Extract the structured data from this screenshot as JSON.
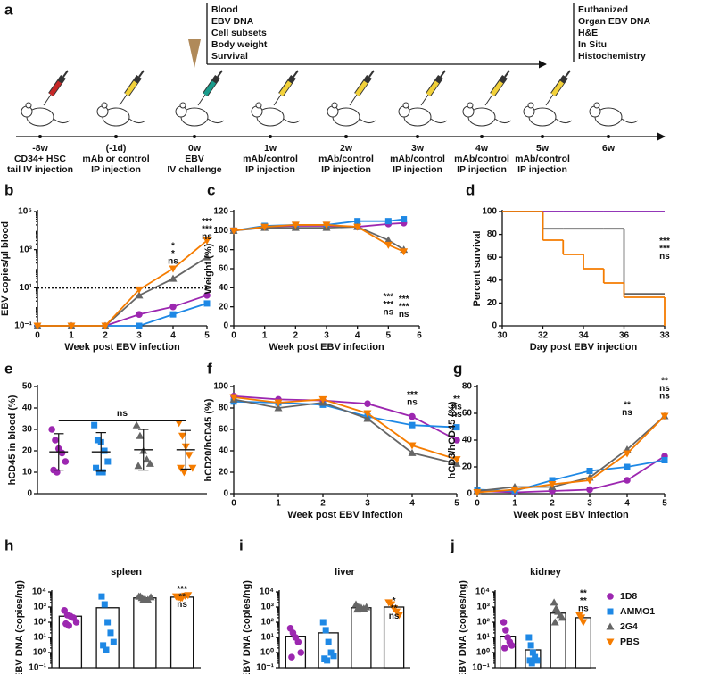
{
  "timeline": {
    "panel": "a",
    "measurements": [
      "Blood",
      "EBV DNA",
      "Cell subsets",
      "Body weight",
      "Survival"
    ],
    "endpoint": [
      "Euthanized",
      "Organ EBV DNA",
      "H&E",
      "In Situ",
      "Histochemistry"
    ],
    "points": [
      {
        "time": "-8w",
        "lines": [
          "CD34+ HSC",
          "tail IV injection"
        ]
      },
      {
        "time": "(-1d)",
        "lines": [
          "mAb or control",
          "IP injection"
        ]
      },
      {
        "time": "0w",
        "lines": [
          "EBV",
          "IV challenge"
        ]
      },
      {
        "time": "1w",
        "lines": [
          "mAb/control",
          "IP injection"
        ]
      },
      {
        "time": "2w",
        "lines": [
          "mAb/control",
          "IP injection"
        ]
      },
      {
        "time": "3w",
        "lines": [
          "mAb/control",
          "IP injection"
        ]
      },
      {
        "time": "4w",
        "lines": [
          "mAb/control",
          "IP injection"
        ]
      },
      {
        "time": "5w",
        "lines": [
          "mAb/control",
          "IP injection"
        ]
      },
      {
        "time": "6w",
        "lines": []
      }
    ]
  },
  "chart_data": [
    {
      "type": "line",
      "panel": "b",
      "xlabel": "Week post EBV infection",
      "ylabel": "EBV copies/µl blood",
      "ylog": true,
      "x": [
        0,
        1,
        2,
        3,
        4,
        5
      ],
      "xlim": [
        0,
        5
      ],
      "xticks": [
        0,
        1,
        2,
        3,
        4,
        5
      ],
      "ylim": [
        0.1,
        100000
      ],
      "yticks": [
        {
          "value": 0.1,
          "label": "10⁻¹"
        },
        {
          "value": 10,
          "label": "10¹"
        },
        {
          "value": 1000,
          "label": "10³"
        },
        {
          "value": 100000,
          "label": "10⁵"
        }
      ],
      "threshold": 10,
      "series": [
        {
          "color": "#9c27b0",
          "marker": "circle",
          "values": [
            0.1,
            0.1,
            0.1,
            0.4,
            1,
            4
          ]
        },
        {
          "color": "#1e88e5",
          "marker": "square",
          "values": [
            0.1,
            0.1,
            0.1,
            0.1,
            0.4,
            1.5
          ]
        },
        {
          "color": "#666666",
          "marker": "triangle",
          "values": [
            0.1,
            0.1,
            0.1,
            4,
            30,
            400
          ]
        },
        {
          "color": "#f57c00",
          "marker": "inverted-triangle",
          "values": [
            0.1,
            0.1,
            0.1,
            8,
            100,
            3000
          ]
        }
      ],
      "annotations": [
        {
          "x": 4,
          "y": 1500,
          "labels": [
            {
              "text": "*",
              "color": "#9c27b0"
            },
            {
              "text": "*",
              "color": "#1e88e5"
            },
            {
              "text": "ns",
              "color": "#666666"
            }
          ]
        },
        {
          "x": 5,
          "y": 30000,
          "labels": [
            {
              "text": "***",
              "color": "#9c27b0"
            },
            {
              "text": "***",
              "color": "#1e88e5"
            },
            {
              "text": "ns",
              "color": "#666666"
            }
          ]
        }
      ]
    },
    {
      "type": "line",
      "panel": "c",
      "xlabel": "Week post EBV infection",
      "ylabel": "Weight (%)",
      "x": [
        0,
        1,
        2,
        3,
        4,
        5,
        5.5
      ],
      "xlim": [
        0,
        6
      ],
      "xticks": [
        0,
        1,
        2,
        3,
        4,
        5,
        6
      ],
      "ylim": [
        0,
        120
      ],
      "yticks": [
        0,
        20,
        40,
        60,
        80,
        100,
        120
      ],
      "series": [
        {
          "color": "#9c27b0",
          "marker": "circle",
          "values": [
            100,
            104,
            105,
            105,
            104,
            107,
            108
          ]
        },
        {
          "color": "#1e88e5",
          "marker": "square",
          "values": [
            100,
            105,
            106,
            106,
            110,
            110,
            112
          ]
        },
        {
          "color": "#666666",
          "marker": "triangle",
          "values": [
            100,
            103,
            103,
            103,
            104,
            90,
            80
          ]
        },
        {
          "color": "#f57c00",
          "marker": "inverted-triangle",
          "values": [
            100,
            104,
            106,
            106,
            104,
            85,
            78
          ]
        }
      ],
      "annotations": [
        {
          "x": 5,
          "y": 30,
          "labels": [
            {
              "text": "***",
              "color": "#9c27b0"
            },
            {
              "text": "***",
              "color": "#1e88e5"
            },
            {
              "text": "ns",
              "color": "#666666"
            }
          ]
        },
        {
          "x": 5.5,
          "y": 28,
          "labels": [
            {
              "text": "***",
              "color": "#9c27b0"
            },
            {
              "text": "***",
              "color": "#1e88e5"
            },
            {
              "text": "ns",
              "color": "#666666"
            }
          ]
        }
      ]
    },
    {
      "type": "step",
      "panel": "d",
      "xlabel": "Day post EBV injection",
      "ylabel": "Percent survival",
      "x": [
        30,
        32,
        33,
        34,
        35,
        36,
        38
      ],
      "xlim": [
        30,
        38
      ],
      "xticks": [
        30,
        32,
        34,
        36,
        38
      ],
      "ylim": [
        0,
        100
      ],
      "yticks": [
        0,
        20,
        40,
        60,
        80,
        100
      ],
      "series": [
        {
          "color": "#1e88e5",
          "values": [
            100,
            100,
            100,
            100,
            100,
            100,
            100
          ]
        },
        {
          "color": "#9c27b0",
          "values": [
            100,
            100,
            100,
            100,
            100,
            100,
            100
          ]
        },
        {
          "color": "#666666",
          "values": [
            100,
            85,
            85,
            85,
            85,
            28,
            28
          ]
        },
        {
          "color": "#f57c00",
          "values": [
            100,
            75,
            62.5,
            50,
            37.5,
            25,
            0
          ]
        }
      ],
      "annotations": [
        {
          "x": 38,
          "y": 74,
          "labels": [
            {
              "text": "***",
              "color": "#9c27b0"
            },
            {
              "text": "***",
              "color": "#1e88e5"
            },
            {
              "text": "ns",
              "color": "#666666"
            }
          ]
        }
      ]
    },
    {
      "type": "dot",
      "panel": "e",
      "ylabel": "hCD45 in blood (%)",
      "ylim": [
        0,
        50
      ],
      "yticks": [
        0,
        10,
        20,
        30,
        40,
        50
      ],
      "bracket": {
        "text": "ns",
        "y": 34
      },
      "series": [
        {
          "color": "#9c27b0",
          "marker": "circle",
          "values": [
            30,
            25,
            21,
            19,
            15,
            11,
            10
          ],
          "mean": 19.5,
          "sd": 8.5
        },
        {
          "color": "#1e88e5",
          "marker": "square",
          "values": [
            32,
            25,
            24,
            20,
            15,
            12,
            10,
            10
          ],
          "mean": 19.5,
          "sd": 9
        },
        {
          "color": "#666666",
          "marker": "triangle",
          "values": [
            32,
            27,
            20,
            16,
            14,
            13
          ],
          "mean": 20.5,
          "sd": 9.5
        },
        {
          "color": "#f57c00",
          "marker": "inverted-triangle",
          "values": [
            33,
            27,
            22,
            18,
            12,
            12,
            10
          ],
          "mean": 20.5,
          "sd": 9
        }
      ]
    },
    {
      "type": "line",
      "panel": "f",
      "xlabel": "Week post EBV infection",
      "ylabel": "hCD20/hCD45 (%)",
      "x": [
        0,
        1,
        2,
        3,
        4,
        5
      ],
      "xlim": [
        0,
        5
      ],
      "xticks": [
        0,
        1,
        2,
        3,
        4,
        5
      ],
      "ylim": [
        0,
        100
      ],
      "yticks": [
        0,
        20,
        40,
        60,
        80,
        100
      ],
      "series": [
        {
          "color": "#9c27b0",
          "marker": "circle",
          "values": [
            91,
            88,
            87,
            84,
            72,
            50
          ]
        },
        {
          "color": "#1e88e5",
          "marker": "square",
          "values": [
            86,
            85,
            83,
            72,
            64,
            62
          ]
        },
        {
          "color": "#666666",
          "marker": "triangle",
          "values": [
            88,
            80,
            85,
            70,
            38,
            28
          ]
        },
        {
          "color": "#f57c00",
          "marker": "inverted-triangle",
          "values": [
            90,
            85,
            88,
            75,
            45,
            32
          ]
        }
      ],
      "annotations": [
        {
          "x": 4,
          "y": 92,
          "labels": [
            {
              "text": "***",
              "color": "#9c27b0"
            },
            {
              "text": "ns",
              "color": "#666666"
            }
          ]
        },
        {
          "x": 5,
          "y": 88,
          "labels": [
            {
              "text": "**",
              "color": "#1e88e5"
            },
            {
              "text": "ns",
              "color": "#9c27b0"
            },
            {
              "text": "ns",
              "color": "#666666"
            }
          ]
        }
      ]
    },
    {
      "type": "line",
      "panel": "g",
      "xlabel": "Week post EBV infection",
      "ylabel": "hCD3/hCD45 (%)",
      "x": [
        0,
        1,
        2,
        3,
        4,
        5
      ],
      "xlim": [
        0,
        5
      ],
      "xticks": [
        0,
        1,
        2,
        3,
        4,
        5
      ],
      "ylim": [
        0,
        80
      ],
      "yticks": [
        0,
        20,
        40,
        60,
        80
      ],
      "series": [
        {
          "color": "#9c27b0",
          "marker": "circle",
          "values": [
            2,
            1,
            2,
            3,
            10,
            28
          ]
        },
        {
          "color": "#1e88e5",
          "marker": "square",
          "values": [
            3,
            2,
            10,
            17,
            20,
            25
          ]
        },
        {
          "color": "#666666",
          "marker": "triangle",
          "values": [
            2,
            5,
            5,
            12,
            33,
            58
          ]
        },
        {
          "color": "#f57c00",
          "marker": "inverted-triangle",
          "values": [
            1,
            3,
            7,
            10,
            30,
            58
          ]
        }
      ],
      "annotations": [
        {
          "x": 4,
          "y": 66,
          "labels": [
            {
              "text": "**",
              "color": "#9c27b0"
            },
            {
              "text": "ns",
              "color": "#666666"
            }
          ]
        },
        {
          "x": 5,
          "y": 84,
          "labels": [
            {
              "text": "**",
              "color": "#1e88e5"
            },
            {
              "text": "ns",
              "color": "#9c27b0"
            },
            {
              "text": "ns",
              "color": "#666666"
            }
          ]
        }
      ]
    },
    {
      "type": "bar",
      "panel": "h",
      "title": "spleen",
      "ylabel": "EBV DNA (copies/ng)",
      "ylog": true,
      "ylim": [
        0.1,
        10000
      ],
      "yticks": [
        {
          "value": 0.1,
          "label": "10⁻¹"
        },
        {
          "value": 1,
          "label": "10⁰"
        },
        {
          "value": 10,
          "label": "10¹"
        },
        {
          "value": 100,
          "label": "10²"
        },
        {
          "value": 1000,
          "label": "10³"
        },
        {
          "value": 10000,
          "label": "10⁴"
        }
      ],
      "series": [
        {
          "color": "#9c27b0",
          "marker": "circle",
          "mean": 250,
          "values": [
            600,
            300,
            250,
            200,
            100,
            80,
            60
          ]
        },
        {
          "color": "#1e88e5",
          "marker": "square",
          "mean": 900,
          "values": [
            5000,
            1500,
            100,
            20,
            5,
            3,
            1.5
          ]
        },
        {
          "color": "#666666",
          "marker": "triangle",
          "mean": 4000,
          "values": [
            5000,
            4000,
            3500,
            3000,
            4500,
            5000,
            3000
          ]
        },
        {
          "color": "#f57c00",
          "marker": "inverted-triangle",
          "mean": 4500,
          "values": [
            5000,
            4500,
            4000,
            5500,
            6000,
            4500,
            4000
          ],
          "annotations": {
            "y": 14000,
            "labels": [
              {
                "text": "***",
                "color": "#9c27b0"
              },
              {
                "text": "**",
                "color": "#1e88e5"
              },
              {
                "text": "ns",
                "color": "#666666"
              }
            ]
          }
        }
      ]
    },
    {
      "type": "bar",
      "panel": "i",
      "title": "liver",
      "ylabel": "EBV DNA (copies/ng)",
      "ylog": true,
      "ylim": [
        0.1,
        10000
      ],
      "yticks": [
        {
          "value": 0.1,
          "label": "10⁻¹"
        },
        {
          "value": 1,
          "label": "10⁰"
        },
        {
          "value": 10,
          "label": "10¹"
        },
        {
          "value": 100,
          "label": "10²"
        },
        {
          "value": 1000,
          "label": "10³"
        },
        {
          "value": 10000,
          "label": "10⁴"
        }
      ],
      "series": [
        {
          "color": "#9c27b0",
          "marker": "circle",
          "mean": 12,
          "values": [
            40,
            20,
            10,
            5,
            1,
            0.5
          ]
        },
        {
          "color": "#1e88e5",
          "marker": "square",
          "mean": 20,
          "values": [
            100,
            30,
            5,
            1,
            0.6,
            0.4,
            0.3
          ]
        },
        {
          "color": "#666666",
          "marker": "triangle",
          "mean": 900,
          "values": [
            1500,
            1000,
            900,
            800,
            1000,
            700
          ]
        },
        {
          "color": "#f57c00",
          "marker": "inverted-triangle",
          "mean": 1000,
          "values": [
            2000,
            1500,
            800,
            500,
            300
          ],
          "annotations": {
            "y": 2500,
            "labels": [
              {
                "text": "*",
                "color": "#9c27b0"
              },
              {
                "text": "**",
                "color": "#1e88e5"
              },
              {
                "text": "ns",
                "color": "#666666"
              }
            ]
          }
        }
      ]
    },
    {
      "type": "bar",
      "panel": "j",
      "title": "kidney",
      "ylabel": "EBV DNA (copies/ng)",
      "ylog": true,
      "legend": "right",
      "ylim": [
        0.1,
        10000
      ],
      "yticks": [
        {
          "value": 0.1,
          "label": "10⁻¹"
        },
        {
          "value": 1,
          "label": "10⁰"
        },
        {
          "value": 10,
          "label": "10¹"
        },
        {
          "value": 100,
          "label": "10²"
        },
        {
          "value": 1000,
          "label": "10³"
        },
        {
          "value": 10000,
          "label": "10⁴"
        }
      ],
      "series": [
        {
          "name": "1D8",
          "color": "#9c27b0",
          "marker": "circle",
          "mean": 12,
          "values": [
            100,
            30,
            10,
            5,
            3,
            2
          ]
        },
        {
          "name": "AMMO1",
          "color": "#1e88e5",
          "marker": "square",
          "mean": 1.5,
          "values": [
            10,
            3,
            1,
            0.5,
            0.3,
            0.3,
            0.2
          ]
        },
        {
          "name": "2G4",
          "color": "#666666",
          "marker": "triangle",
          "mean": 400,
          "values": [
            2000,
            800,
            500,
            300,
            200,
            100
          ]
        },
        {
          "name": "PBS",
          "color": "#f57c00",
          "marker": "inverted-triangle",
          "mean": 200,
          "values": [
            300,
            200,
            100
          ],
          "annotations": {
            "y": 8000,
            "labels": [
              {
                "text": "**",
                "color": "#9c27b0"
              },
              {
                "text": "**",
                "color": "#1e88e5"
              },
              {
                "text": "ns",
                "color": "#666666"
              }
            ]
          }
        }
      ]
    }
  ]
}
